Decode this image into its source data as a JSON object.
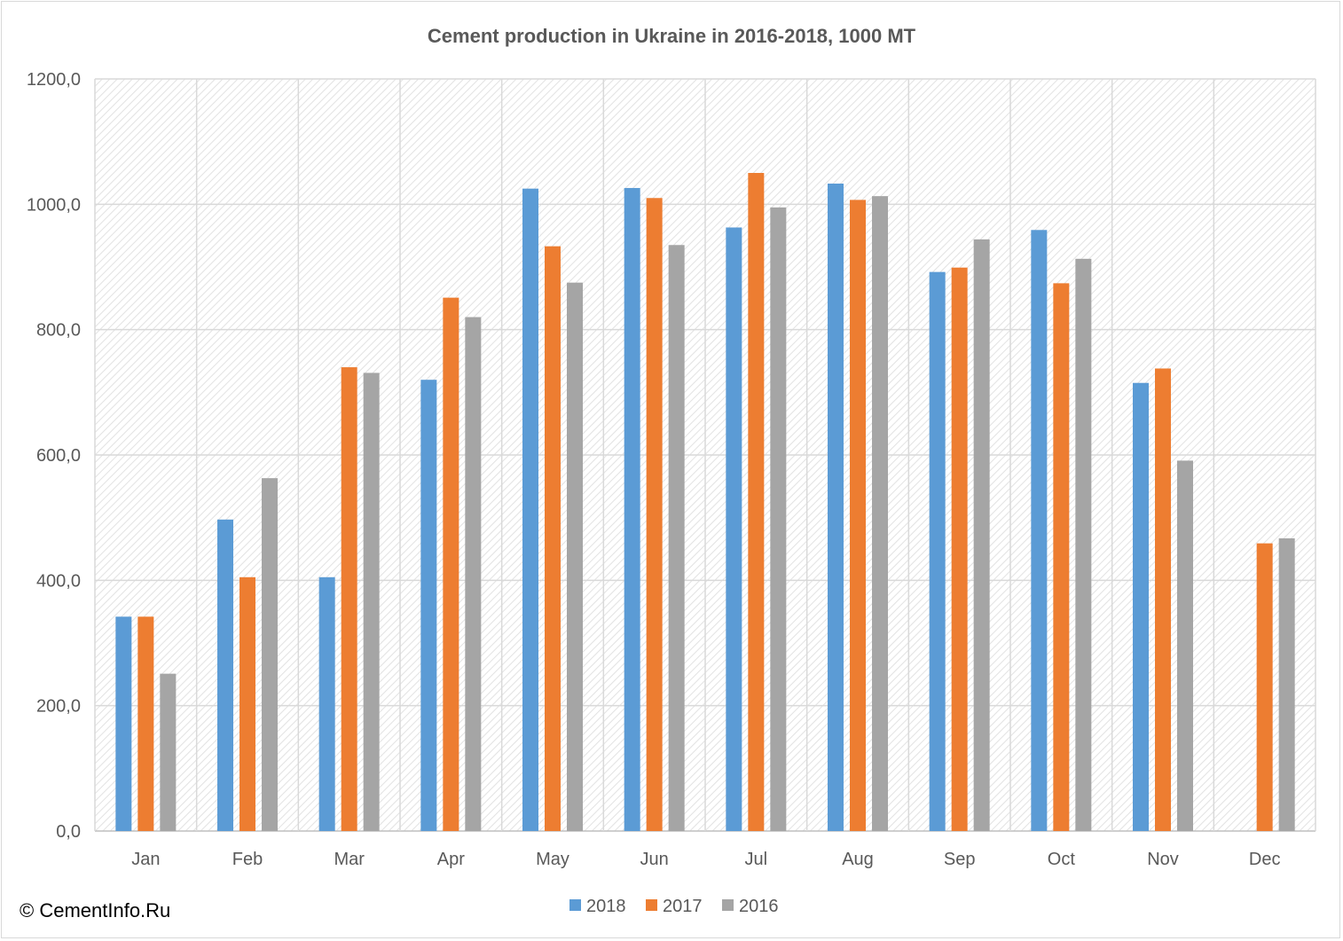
{
  "copyright": "© CementInfo.Ru",
  "colors": {
    "s2018": "#5b9bd5",
    "s2017": "#ed7d31",
    "s2016": "#a5a5a5",
    "grid": "#d9d9d9",
    "text": "#595959"
  },
  "chart_data": {
    "type": "bar",
    "title": "Cement production in Ukraine in 2016-2018, 1000 MT",
    "categories": [
      "Jan",
      "Feb",
      "Mar",
      "Apr",
      "May",
      "Jun",
      "Jul",
      "Aug",
      "Sep",
      "Oct",
      "Nov",
      "Dec"
    ],
    "series": [
      {
        "name": "2018",
        "color": "#5b9bd5",
        "values": [
          342,
          497,
          405,
          720,
          1025,
          1026,
          963,
          1033,
          892,
          959,
          715,
          null
        ]
      },
      {
        "name": "2017",
        "color": "#ed7d31",
        "values": [
          342,
          405,
          740,
          851,
          933,
          1010,
          1050,
          1007,
          899,
          874,
          738,
          459
        ]
      },
      {
        "name": "2016",
        "color": "#a5a5a5",
        "values": [
          251,
          563,
          731,
          820,
          875,
          935,
          995,
          1013,
          944,
          913,
          591,
          467
        ]
      }
    ],
    "yticks": [
      "0,0",
      "200,0",
      "400,0",
      "600,0",
      "800,0",
      "1000,0",
      "1200,0"
    ],
    "ylim": [
      0,
      1200
    ],
    "grid": true,
    "legend": "bottom"
  }
}
